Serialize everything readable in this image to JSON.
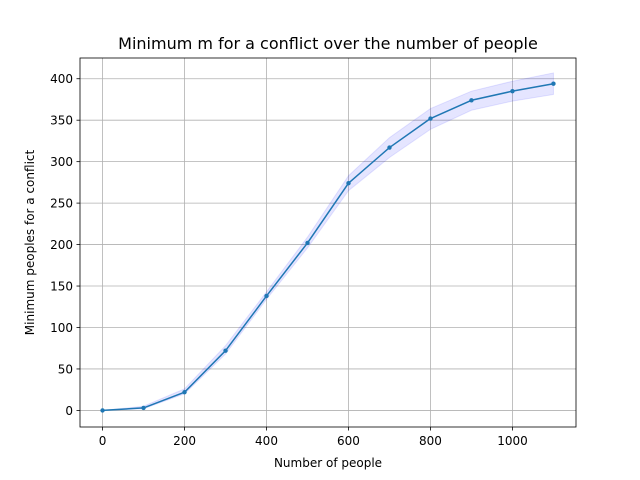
{
  "chart_data": {
    "type": "line",
    "title": "Minimum m for a conflict over the number of people",
    "xlabel": "Number of people",
    "ylabel": "Minimum peoples for a conflict",
    "xlim": [
      -55,
      1155
    ],
    "ylim": [
      -20,
      425
    ],
    "xticks": [
      0,
      200,
      400,
      600,
      800,
      1000
    ],
    "yticks": [
      0,
      50,
      100,
      150,
      200,
      250,
      300,
      350,
      400
    ],
    "grid": true,
    "series": [
      {
        "x": [
          0,
          100,
          200,
          300,
          400,
          500,
          600,
          700,
          800,
          900,
          1000,
          1100
        ],
        "y": [
          0,
          3,
          22,
          72,
          138,
          202,
          274,
          317,
          352,
          374,
          385,
          394
        ],
        "lower": [
          0,
          2,
          20,
          68,
          134,
          196,
          265,
          305,
          339,
          362,
          373,
          381
        ],
        "upper": [
          0,
          5,
          26,
          78,
          143,
          209,
          283,
          329,
          364,
          385,
          397,
          407
        ],
        "color": "#1f77b4",
        "band_color": "#0000ff"
      }
    ]
  }
}
